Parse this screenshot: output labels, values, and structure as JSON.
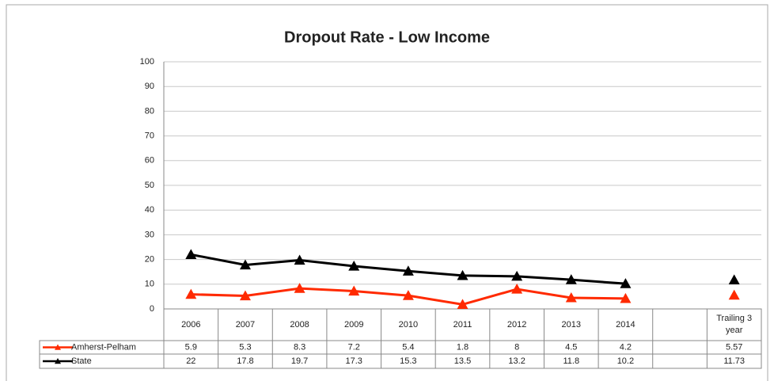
{
  "chart_data": {
    "type": "line",
    "title": "Dropout Rate - Low Income",
    "categories": [
      "2006",
      "2007",
      "2008",
      "2009",
      "2010",
      "2011",
      "2012",
      "2013",
      "2014",
      null,
      "Trailing 3 year"
    ],
    "series": [
      {
        "name": "Amherst-Pelham",
        "color": "#ff2a00",
        "values": [
          5.9,
          5.3,
          8.3,
          7.2,
          5.4,
          1.8,
          8,
          4.5,
          4.2,
          null,
          5.57
        ]
      },
      {
        "name": "State",
        "color": "#000000",
        "values": [
          22,
          17.8,
          19.7,
          17.3,
          15.3,
          13.5,
          13.2,
          11.8,
          10.2,
          null,
          11.73
        ]
      }
    ],
    "ylim": [
      0,
      100
    ],
    "yticks": [
      0,
      10,
      20,
      30,
      40,
      50,
      60,
      70,
      80,
      90,
      100
    ],
    "grid": true
  }
}
